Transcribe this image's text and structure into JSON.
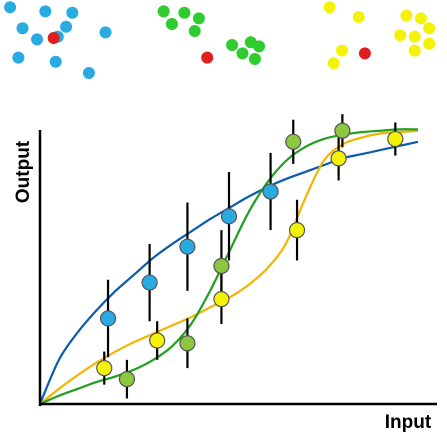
{
  "chart_data": {
    "type": "line",
    "title": "",
    "xlabel": "Input",
    "ylabel": "Output",
    "xlim": [
      0,
      10
    ],
    "ylim": [
      0,
      10
    ],
    "grid": false,
    "legend": "none",
    "series": [
      {
        "color": "#0b5cad",
        "marker_color": "#29abe2",
        "curve_x": [
          0,
          0.5,
          1,
          1.5,
          2,
          2.5,
          3,
          3.5,
          4,
          4.5,
          5,
          5.5,
          6,
          6.5,
          7,
          7.5,
          8,
          8.5,
          9,
          9.5,
          10
        ],
        "curve_y": [
          0,
          1.6,
          2.6,
          3.4,
          4.1,
          4.7,
          5.3,
          5.8,
          6.25,
          6.7,
          7.1,
          7.5,
          7.85,
          8.15,
          8.4,
          8.65,
          8.9,
          9.05,
          9.2,
          9.35,
          9.5
        ],
        "points_x": [
          1.8,
          2.9,
          3.9,
          5.0,
          6.1
        ],
        "points_y": [
          3.1,
          4.4,
          5.7,
          6.8,
          7.7
        ],
        "err": [
          1.4,
          1.4,
          1.6,
          1.6,
          1.4
        ]
      },
      {
        "color": "#f4b400",
        "marker_color": "#f5f20a",
        "curve_x": [
          0,
          0.5,
          1,
          1.5,
          2,
          2.5,
          3,
          3.5,
          4,
          4.5,
          5,
          5.5,
          6,
          6.5,
          7,
          7.5,
          8,
          8.5,
          9,
          9.5,
          10
        ],
        "curve_y": [
          0,
          0.55,
          1.05,
          1.5,
          1.9,
          2.25,
          2.55,
          2.85,
          3.15,
          3.5,
          3.85,
          4.3,
          4.9,
          5.8,
          7.4,
          8.8,
          9.4,
          9.65,
          9.8,
          9.85,
          9.9
        ],
        "points_x": [
          1.7,
          3.1,
          4.8,
          6.8,
          7.9,
          9.4
        ],
        "points_y": [
          1.3,
          2.3,
          3.8,
          6.3,
          8.9,
          9.6
        ],
        "err": [
          0.6,
          0.7,
          0.9,
          1.1,
          0.8,
          0.6
        ]
      },
      {
        "color": "#20a020",
        "marker_color": "#8dc63f",
        "curve_x": [
          0,
          0.5,
          1,
          1.5,
          2,
          2.5,
          3,
          3.5,
          4,
          4.5,
          5,
          5.5,
          6,
          6.5,
          7,
          7.5,
          8,
          8.5,
          9,
          9.5,
          10
        ],
        "curve_y": [
          0,
          0.3,
          0.55,
          0.8,
          1.0,
          1.25,
          1.6,
          2.1,
          2.9,
          4.1,
          5.5,
          6.9,
          8.0,
          8.8,
          9.3,
          9.6,
          9.75,
          9.85,
          9.9,
          9.95,
          9.95
        ],
        "points_x": [
          2.3,
          3.9,
          4.8,
          6.7,
          8.0
        ],
        "points_y": [
          0.9,
          2.2,
          5.0,
          9.5,
          9.9
        ],
        "err": [
          0.7,
          0.9,
          1.3,
          0.8,
          0.6
        ]
      }
    ],
    "clusters": [
      {
        "color": "#29abe2",
        "dots_x": [
          0.05,
          0.9,
          1.55,
          0.35,
          1.4,
          0.7,
          1.2,
          2.35,
          0.25,
          1.15,
          1.95
        ],
        "dots_y": [
          2.6,
          2.45,
          2.4,
          1.85,
          1.9,
          1.45,
          1.55,
          1.7,
          0.8,
          0.65,
          0.25
        ]
      },
      {
        "color": "#e02020",
        "dots_x": [
          1.1
        ],
        "dots_y": [
          1.5
        ]
      },
      {
        "color": "#2ecc2e",
        "dots_x": [
          3.75,
          4.25,
          4.6,
          3.95,
          4.5,
          5.4,
          5.85,
          6.05,
          5.65,
          5.95
        ],
        "dots_y": [
          2.45,
          2.4,
          2.2,
          2.0,
          1.75,
          1.25,
          1.35,
          1.2,
          0.95,
          0.75
        ]
      },
      {
        "color": "#e02020",
        "dots_x": [
          4.8
        ],
        "dots_y": [
          0.8
        ]
      },
      {
        "color": "#f5f20a",
        "dots_x": [
          7.75,
          8.45,
          8.05,
          7.85
        ],
        "dots_y": [
          2.6,
          2.25,
          1.05,
          0.6
        ]
      },
      {
        "color": "#e02020",
        "dots_x": [
          8.6
        ],
        "dots_y": [
          0.95
        ]
      },
      {
        "color": "#f5f20a",
        "dots_x": [
          9.6,
          9.95,
          10.15,
          9.45,
          9.8,
          10.15,
          9.8
        ],
        "dots_y": [
          2.3,
          2.2,
          1.85,
          1.6,
          1.55,
          1.3,
          1.05
        ]
      }
    ]
  }
}
